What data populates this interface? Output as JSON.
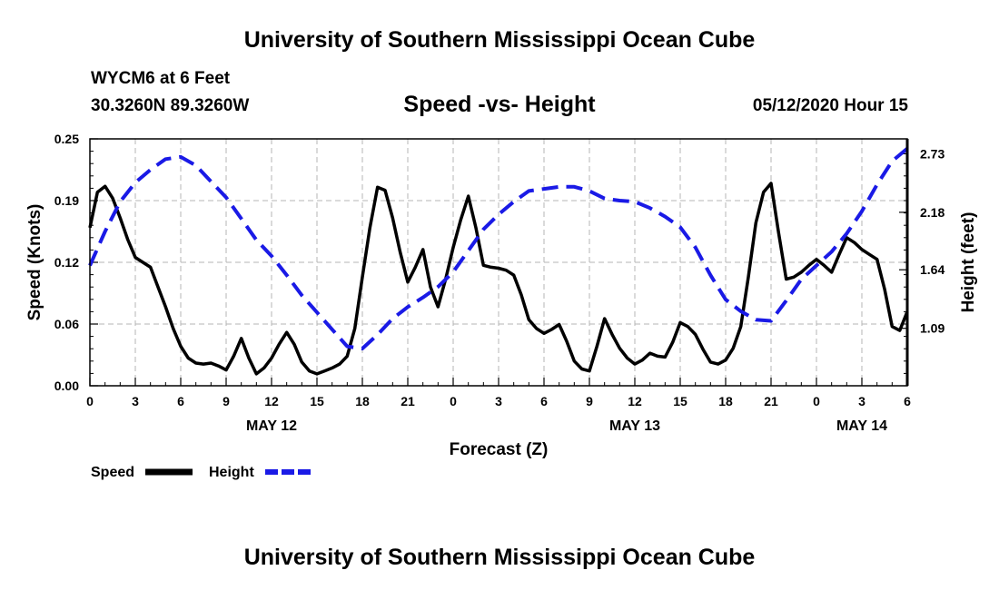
{
  "header": {
    "title_top": "University of Southern Mississippi Ocean Cube",
    "station": "WYCM6 at 6 Feet",
    "coords": "30.3260N 89.3260W",
    "run_time": "05/12/2020 Hour 15",
    "title_bottom": "University of Southern Mississippi Ocean Cube"
  },
  "colors": {
    "speed": "#000000",
    "height": "#1a1ae6",
    "grid": "#b4b4b4"
  },
  "chart_data": {
    "type": "line",
    "title": "Speed -vs- Height",
    "xlabel": "Forecast (Z)",
    "ylabel": "Speed (Knots)",
    "y2label": "Height (feet)",
    "x_range_hours": [
      0,
      54
    ],
    "x_tick_labels": [
      "0",
      "3",
      "6",
      "9",
      "12",
      "15",
      "18",
      "21",
      "0",
      "3",
      "6",
      "9",
      "12",
      "15",
      "18",
      "21",
      "0",
      "3",
      "6"
    ],
    "date_labels": [
      {
        "label": "MAY 12",
        "hour": 12
      },
      {
        "label": "MAY 13",
        "hour": 36
      },
      {
        "label": "MAY 14",
        "hour": 51
      }
    ],
    "ylim": [
      0,
      0.25
    ],
    "y_ticks": [
      "0.00",
      "0.06",
      "0.12",
      "0.19",
      "0.25"
    ],
    "y2lim": [
      0.55,
      2.87
    ],
    "y2_ticks": [
      "1.09",
      "1.64",
      "2.18",
      "2.73"
    ],
    "legend": [
      {
        "name": "Speed",
        "style": "solid"
      },
      {
        "name": "Height",
        "style": "dashed"
      }
    ],
    "series": [
      {
        "name": "Speed",
        "axis": "left",
        "x": [
          0,
          0.5,
          1,
          1.5,
          2,
          2.5,
          3,
          3.5,
          4,
          4.5,
          5,
          5.5,
          6,
          6.5,
          7,
          7.5,
          8,
          8.5,
          9,
          9.5,
          10,
          10.5,
          11,
          11.5,
          12,
          12.5,
          13,
          13.5,
          14,
          14.5,
          15,
          15.5,
          16,
          16.5,
          17,
          17.5,
          18,
          18.5,
          19,
          19.5,
          20,
          20.5,
          21,
          21.5,
          22,
          22.5,
          23,
          23.5,
          24,
          24.5,
          25,
          25.5,
          26,
          26.5,
          27,
          27.5,
          28,
          28.5,
          29,
          29.5,
          30,
          30.5,
          31,
          31.5,
          32,
          32.5,
          33,
          33.5,
          34,
          34.5,
          35,
          35.5,
          36,
          36.5,
          37,
          37.5,
          38,
          38.5,
          39,
          39.5,
          40,
          40.5,
          41,
          41.5,
          42,
          42.5,
          43,
          43.5,
          44,
          44.5,
          45,
          45.5,
          46,
          46.5,
          47,
          47.5,
          48,
          48.5,
          49,
          49.5,
          50,
          50.5,
          51,
          51.5,
          52,
          52.5,
          53,
          53.5,
          54
        ],
        "values": [
          0.16,
          0.196,
          0.202,
          0.19,
          0.17,
          0.148,
          0.13,
          0.125,
          0.12,
          0.1,
          0.08,
          0.058,
          0.04,
          0.028,
          0.023,
          0.022,
          0.023,
          0.02,
          0.016,
          0.03,
          0.048,
          0.028,
          0.012,
          0.018,
          0.028,
          0.042,
          0.054,
          0.042,
          0.024,
          0.015,
          0.012,
          0.015,
          0.018,
          0.022,
          0.03,
          0.058,
          0.11,
          0.16,
          0.201,
          0.198,
          0.17,
          0.135,
          0.105,
          0.12,
          0.138,
          0.1,
          0.08,
          0.108,
          0.14,
          0.168,
          0.192,
          0.16,
          0.122,
          0.12,
          0.119,
          0.117,
          0.112,
          0.092,
          0.067,
          0.058,
          0.053,
          0.057,
          0.062,
          0.045,
          0.025,
          0.017,
          0.015,
          0.04,
          0.068,
          0.052,
          0.038,
          0.028,
          0.022,
          0.026,
          0.033,
          0.03,
          0.029,
          0.044,
          0.064,
          0.06,
          0.052,
          0.037,
          0.024,
          0.022,
          0.026,
          0.038,
          0.06,
          0.11,
          0.165,
          0.196,
          0.205,
          0.155,
          0.108,
          0.11,
          0.115,
          0.122,
          0.128,
          0.122,
          0.115,
          0.133,
          0.15,
          0.145,
          0.138,
          0.133,
          0.128,
          0.098,
          0.06,
          0.056,
          0.075
        ]
      },
      {
        "name": "Height",
        "axis": "right",
        "x": [
          0,
          1,
          2,
          3,
          4,
          5,
          6,
          7,
          8,
          9,
          10,
          11,
          12,
          13,
          14,
          15,
          16,
          17,
          18,
          19,
          20,
          21,
          22,
          23,
          24,
          25,
          26,
          27,
          28,
          29,
          30,
          31,
          32,
          33,
          34,
          35,
          36,
          37,
          38,
          39,
          40,
          41,
          42,
          43,
          44,
          45,
          46,
          47,
          48,
          49,
          50,
          51,
          52,
          53,
          54
        ],
        "values": [
          1.68,
          2.0,
          2.28,
          2.46,
          2.58,
          2.68,
          2.7,
          2.62,
          2.47,
          2.32,
          2.12,
          1.92,
          1.77,
          1.59,
          1.4,
          1.24,
          1.08,
          0.92,
          0.9,
          1.03,
          1.18,
          1.29,
          1.38,
          1.48,
          1.62,
          1.82,
          2.02,
          2.16,
          2.28,
          2.38,
          2.4,
          2.42,
          2.42,
          2.38,
          2.31,
          2.29,
          2.28,
          2.22,
          2.14,
          2.04,
          1.85,
          1.59,
          1.36,
          1.25,
          1.17,
          1.16,
          1.35,
          1.55,
          1.68,
          1.81,
          1.98,
          2.19,
          2.44,
          2.66,
          2.78
        ]
      }
    ]
  }
}
